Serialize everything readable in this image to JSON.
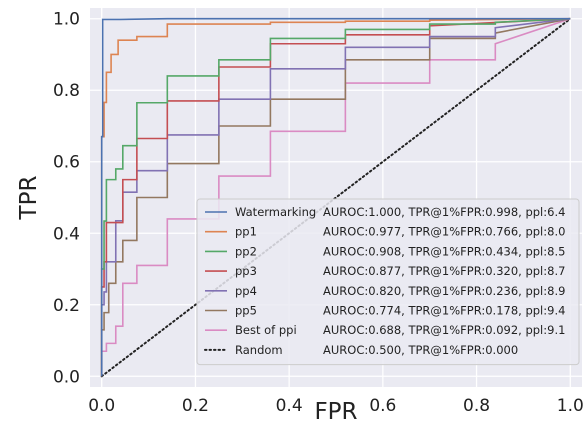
{
  "chart_data": {
    "type": "line",
    "title": "",
    "xlabel": "FPR",
    "ylabel": "TPR",
    "xlim": [
      -0.025,
      1.025
    ],
    "ylim": [
      -0.03,
      1.03
    ],
    "xticks": [
      0.0,
      0.2,
      0.4,
      0.6,
      0.8,
      1.0
    ],
    "xtick_labels": [
      "0.0",
      "0.2",
      "0.4",
      "0.6",
      "0.8",
      "1.0"
    ],
    "yticks": [
      0.0,
      0.2,
      0.4,
      0.6,
      0.8,
      1.0
    ],
    "ytick_labels": [
      "0.0",
      "0.2",
      "0.4",
      "0.6",
      "0.8",
      "1.0"
    ],
    "grid": true,
    "legend_position": "lower-right",
    "background_color": "#eaeaf2",
    "series": [
      {
        "name": "Watermarking",
        "stats": "AUROC:1.000, TPR@1%FPR:0.998, ppl:6.4",
        "color": "#4c72b0",
        "dash": "solid",
        "x": [
          0,
          0,
          0.002,
          0.002,
          0.04,
          0.14,
          1.0
        ],
        "y": [
          0,
          0.67,
          0.67,
          0.998,
          0.998,
          1.0,
          1.0
        ]
      },
      {
        "name": "pp1",
        "stats": "AUROC:0.977, TPR@1%FPR:0.766, ppl:8.0",
        "color": "#dd8452",
        "dash": "solid",
        "x": [
          0,
          0,
          0.005,
          0.005,
          0.01,
          0.01,
          0.02,
          0.02,
          0.035,
          0.035,
          0.075,
          0.075,
          0.14,
          0.14,
          0.36,
          0.36,
          0.52,
          0.52,
          0.7,
          0.7,
          1.0
        ],
        "y": [
          0,
          0.67,
          0.67,
          0.766,
          0.766,
          0.85,
          0.85,
          0.9,
          0.9,
          0.94,
          0.94,
          0.95,
          0.95,
          0.985,
          0.985,
          0.99,
          0.99,
          0.993,
          0.993,
          0.996,
          1.0
        ]
      },
      {
        "name": "pp2",
        "stats": "AUROC:0.908, TPR@1%FPR:0.434, ppl:8.5",
        "color": "#55a868",
        "dash": "solid",
        "x": [
          0,
          0,
          0.005,
          0.005,
          0.01,
          0.01,
          0.03,
          0.03,
          0.045,
          0.045,
          0.075,
          0.075,
          0.14,
          0.14,
          0.25,
          0.25,
          0.36,
          0.36,
          0.52,
          0.52,
          0.7,
          0.7,
          0.84,
          0.84,
          1.0
        ],
        "y": [
          0,
          0.3,
          0.3,
          0.434,
          0.434,
          0.55,
          0.55,
          0.58,
          0.58,
          0.645,
          0.645,
          0.765,
          0.765,
          0.84,
          0.84,
          0.885,
          0.885,
          0.945,
          0.945,
          0.97,
          0.97,
          0.985,
          0.985,
          0.99,
          1.0
        ]
      },
      {
        "name": "pp3",
        "stats": "AUROC:0.877, TPR@1%FPR:0.320, ppl:8.7",
        "color": "#c44e52",
        "dash": "solid",
        "x": [
          0,
          0,
          0.005,
          0.005,
          0.01,
          0.01,
          0.045,
          0.045,
          0.075,
          0.075,
          0.14,
          0.14,
          0.25,
          0.25,
          0.36,
          0.36,
          0.52,
          0.52,
          0.7,
          0.7,
          1.0
        ],
        "y": [
          0,
          0.25,
          0.25,
          0.32,
          0.32,
          0.43,
          0.43,
          0.55,
          0.55,
          0.665,
          0.665,
          0.77,
          0.77,
          0.865,
          0.865,
          0.93,
          0.93,
          0.955,
          0.955,
          0.98,
          1.0
        ]
      },
      {
        "name": "pp4",
        "stats": "AUROC:0.820, TPR@1%FPR:0.236, ppl:8.9",
        "color": "#8172b3",
        "dash": "solid",
        "x": [
          0,
          0,
          0.005,
          0.005,
          0.01,
          0.01,
          0.03,
          0.03,
          0.045,
          0.045,
          0.075,
          0.075,
          0.14,
          0.14,
          0.25,
          0.25,
          0.36,
          0.36,
          0.52,
          0.52,
          0.7,
          0.7,
          0.84,
          0.84,
          1.0
        ],
        "y": [
          0,
          0.2,
          0.2,
          0.236,
          0.236,
          0.32,
          0.32,
          0.435,
          0.435,
          0.515,
          0.515,
          0.575,
          0.575,
          0.675,
          0.675,
          0.775,
          0.775,
          0.86,
          0.86,
          0.92,
          0.92,
          0.95,
          0.95,
          0.975,
          1.0
        ]
      },
      {
        "name": "pp5",
        "stats": "AUROC:0.774, TPR@1%FPR:0.178, ppl:9.4",
        "color": "#937860",
        "dash": "solid",
        "x": [
          0,
          0,
          0.005,
          0.005,
          0.015,
          0.015,
          0.03,
          0.03,
          0.045,
          0.045,
          0.075,
          0.075,
          0.14,
          0.14,
          0.25,
          0.25,
          0.36,
          0.36,
          0.52,
          0.52,
          0.7,
          0.7,
          0.84,
          0.84,
          1.0
        ],
        "y": [
          0,
          0.13,
          0.13,
          0.178,
          0.178,
          0.26,
          0.26,
          0.32,
          0.32,
          0.38,
          0.38,
          0.5,
          0.5,
          0.595,
          0.595,
          0.7,
          0.7,
          0.775,
          0.775,
          0.885,
          0.885,
          0.945,
          0.945,
          0.96,
          1.0
        ]
      },
      {
        "name": "Best of ppi",
        "stats": "AUROC:0.688, TPR@1%FPR:0.092, ppl:9.1",
        "color": "#da8bc3",
        "dash": "solid",
        "x": [
          0,
          0,
          0.01,
          0.01,
          0.03,
          0.03,
          0.045,
          0.045,
          0.075,
          0.075,
          0.14,
          0.14,
          0.25,
          0.25,
          0.36,
          0.36,
          0.52,
          0.52,
          0.7,
          0.7,
          0.84,
          0.84,
          1.0
        ],
        "y": [
          0,
          0.07,
          0.07,
          0.092,
          0.092,
          0.14,
          0.14,
          0.26,
          0.26,
          0.31,
          0.31,
          0.44,
          0.44,
          0.56,
          0.56,
          0.685,
          0.685,
          0.82,
          0.82,
          0.885,
          0.885,
          0.93,
          1.0
        ]
      },
      {
        "name": "Random",
        "stats": "AUROC:0.500, TPR@1%FPR:0.000",
        "color": "#222222",
        "dash": "dotted",
        "x": [
          0,
          1.0
        ],
        "y": [
          0,
          1.0
        ]
      }
    ]
  }
}
